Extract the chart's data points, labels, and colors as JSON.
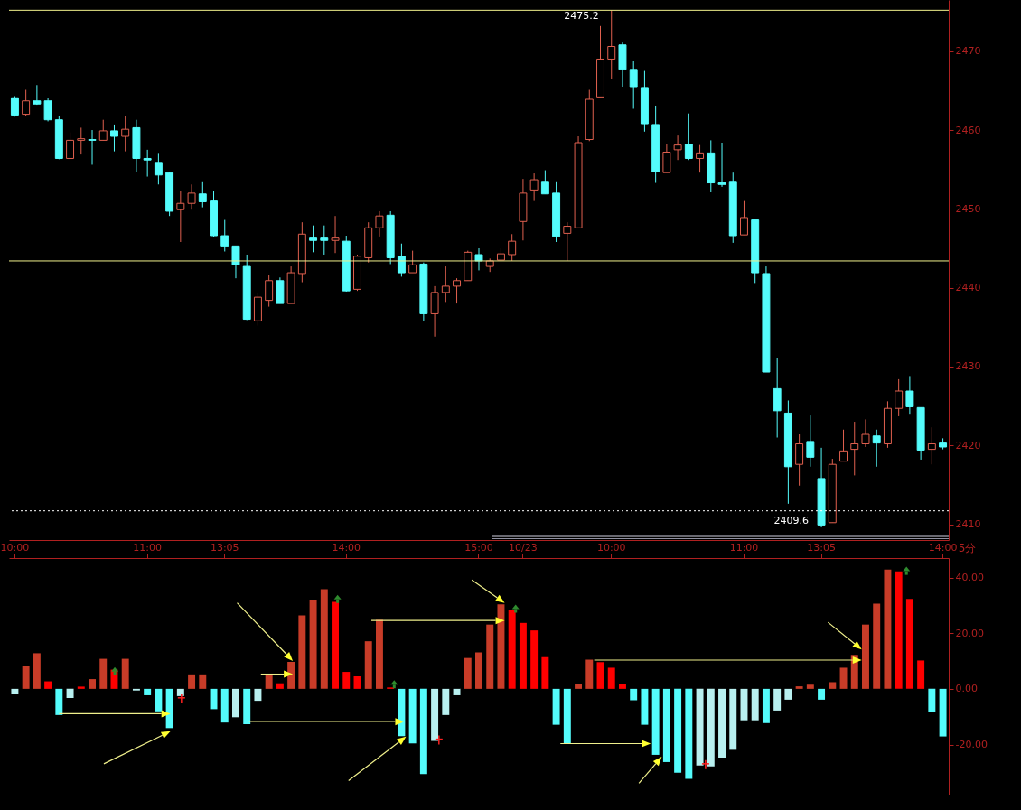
{
  "chart_data": [
    {
      "type": "candlestick",
      "tick_labels": "y",
      "grid": false,
      "categories": [
        null,
        null,
        null,
        null,
        null,
        null,
        null,
        null,
        null,
        null,
        null,
        null,
        null,
        null,
        null,
        null,
        null,
        null,
        null,
        null,
        null,
        null,
        null,
        null,
        null,
        null,
        null,
        null,
        null,
        null,
        null,
        null,
        null,
        null,
        null,
        null,
        null,
        null,
        null,
        null,
        null,
        null,
        null,
        null,
        null,
        null,
        null,
        null,
        null,
        null,
        null,
        null,
        null,
        null,
        null,
        null,
        null,
        null,
        null,
        null,
        null,
        null,
        null,
        null,
        null,
        null,
        null,
        null,
        null,
        null,
        null,
        null,
        null,
        null,
        null,
        null,
        null,
        null,
        null,
        null,
        null,
        null,
        null,
        null,
        null
      ],
      "ohlc": [
        [
          2464.1,
          2464.3,
          2461.7,
          2461.9
        ],
        [
          2462.0,
          2465.1,
          2461.8,
          2463.7
        ],
        [
          2463.7,
          2465.7,
          2463.2,
          2463.3
        ],
        [
          2463.7,
          2464.1,
          2461.1,
          2461.3
        ],
        [
          2461.3,
          2461.8,
          2456.3,
          2456.4
        ],
        [
          2456.4,
          2459.7,
          2456.3,
          2458.7
        ],
        [
          2458.7,
          2460.3,
          2456.9,
          2458.9
        ],
        [
          2458.8,
          2460.0,
          2455.6,
          2458.7
        ],
        [
          2458.7,
          2461.3,
          2458.7,
          2459.9
        ],
        [
          2459.9,
          2460.7,
          2457.3,
          2459.2
        ],
        [
          2459.2,
          2461.8,
          2457.3,
          2460.1
        ],
        [
          2460.3,
          2461.3,
          2454.7,
          2456.4
        ],
        [
          2456.4,
          2457.5,
          2454.1,
          2456.2
        ],
        [
          2455.9,
          2457.1,
          2453.1,
          2454.3
        ],
        [
          2454.6,
          2454.6,
          2449.1,
          2449.7
        ],
        [
          2449.9,
          2452.3,
          2445.8,
          2450.7
        ],
        [
          2450.7,
          2453.1,
          2449.9,
          2452.0
        ],
        [
          2451.9,
          2453.5,
          2450.2,
          2450.9
        ],
        [
          2451.0,
          2452.3,
          2446.4,
          2446.6
        ],
        [
          2446.6,
          2448.6,
          2444.6,
          2445.3
        ],
        [
          2445.3,
          2445.3,
          2441.2,
          2442.9
        ],
        [
          2442.7,
          2444.2,
          2435.9,
          2436.0
        ],
        [
          2435.8,
          2439.4,
          2435.2,
          2438.8
        ],
        [
          2438.4,
          2441.6,
          2437.6,
          2440.9
        ],
        [
          2440.9,
          2441.3,
          2438.0,
          2438.0
        ],
        [
          2438.0,
          2442.7,
          2438.0,
          2441.9
        ],
        [
          2441.8,
          2448.3,
          2440.7,
          2446.8
        ],
        [
          2446.3,
          2447.9,
          2444.5,
          2446.0
        ],
        [
          2446.3,
          2447.9,
          2444.2,
          2446.0
        ],
        [
          2446.0,
          2449.1,
          2444.4,
          2446.3
        ],
        [
          2445.9,
          2446.6,
          2439.5,
          2439.6
        ],
        [
          2439.8,
          2444.2,
          2439.6,
          2444.0
        ],
        [
          2443.8,
          2448.3,
          2443.2,
          2447.6
        ],
        [
          2447.6,
          2449.7,
          2446.5,
          2449.1
        ],
        [
          2449.2,
          2449.7,
          2443.0,
          2443.8
        ],
        [
          2444.0,
          2445.6,
          2441.4,
          2441.9
        ],
        [
          2441.9,
          2444.7,
          2441.9,
          2442.9
        ],
        [
          2443.0,
          2443.2,
          2435.8,
          2436.7
        ],
        [
          2436.7,
          2440.2,
          2433.8,
          2439.4
        ],
        [
          2439.4,
          2442.7,
          2438.2,
          2440.2
        ],
        [
          2440.2,
          2441.2,
          2438.0,
          2440.9
        ],
        [
          2440.9,
          2444.7,
          2440.9,
          2444.5
        ],
        [
          2444.2,
          2445.0,
          2442.2,
          2443.4
        ],
        [
          2442.7,
          2443.7,
          2442.0,
          2443.4
        ],
        [
          2443.5,
          2445.0,
          2443.5,
          2444.3
        ],
        [
          2444.2,
          2446.8,
          2443.4,
          2445.9
        ],
        [
          2448.4,
          2453.8,
          2446.0,
          2452.0
        ],
        [
          2452.4,
          2454.5,
          2451.0,
          2453.7
        ],
        [
          2453.5,
          2454.9,
          2451.9,
          2451.9
        ],
        [
          2452.0,
          2453.5,
          2445.8,
          2446.5
        ],
        [
          2446.9,
          2448.3,
          2443.4,
          2447.8
        ],
        [
          2447.6,
          2459.2,
          2447.6,
          2458.4
        ],
        [
          2458.8,
          2465.1,
          2458.6,
          2463.9
        ],
        [
          2464.2,
          2473.2,
          2464.2,
          2469.0
        ],
        [
          2469.0,
          2475.2,
          2466.5,
          2470.6
        ],
        [
          2470.8,
          2471.1,
          2465.5,
          2467.7
        ],
        [
          2467.7,
          2468.8,
          2462.7,
          2465.5
        ],
        [
          2465.4,
          2467.5,
          2459.8,
          2460.8
        ],
        [
          2460.7,
          2463.1,
          2453.3,
          2454.7
        ],
        [
          2454.6,
          2458.2,
          2454.6,
          2457.2
        ],
        [
          2457.5,
          2459.3,
          2456.2,
          2458.1
        ],
        [
          2458.2,
          2462.1,
          2456.2,
          2456.4
        ],
        [
          2456.4,
          2458.1,
          2454.6,
          2457.1
        ],
        [
          2457.1,
          2458.7,
          2452.1,
          2453.3
        ],
        [
          2453.3,
          2458.4,
          2452.8,
          2453.1
        ],
        [
          2453.5,
          2454.6,
          2445.7,
          2446.6
        ],
        [
          2446.7,
          2451.0,
          2446.7,
          2448.9
        ],
        [
          2448.6,
          2448.6,
          2440.6,
          2441.9
        ],
        [
          2441.8,
          2442.7,
          2429.3,
          2429.3
        ],
        [
          2427.2,
          2431.1,
          2421.0,
          2424.4
        ],
        [
          2424.1,
          2425.7,
          2412.6,
          2417.3
        ],
        [
          2417.6,
          2421.4,
          2414.9,
          2420.2
        ],
        [
          2420.5,
          2423.8,
          2417.3,
          2418.5
        ],
        [
          2415.8,
          2419.7,
          2409.6,
          2409.9
        ],
        [
          2410.2,
          2418.3,
          2410.2,
          2417.6
        ],
        [
          2418.0,
          2422.0,
          2418.0,
          2419.3
        ],
        [
          2419.5,
          2423.0,
          2416.2,
          2420.2
        ],
        [
          2420.2,
          2423.3,
          2419.8,
          2421.4
        ],
        [
          2421.2,
          2422.0,
          2417.3,
          2420.3
        ],
        [
          2420.2,
          2425.6,
          2419.7,
          2424.7
        ],
        [
          2424.7,
          2428.4,
          2423.7,
          2426.9
        ],
        [
          2426.9,
          2428.8,
          2423.9,
          2424.9
        ],
        [
          2424.8,
          2424.8,
          2418.2,
          2419.4
        ],
        [
          2419.5,
          2422.3,
          2417.6,
          2420.2
        ],
        [
          2420.3,
          2420.9,
          2419.5,
          2419.8
        ]
      ],
      "colors": [
        "#54fcfc",
        "#e0604f",
        "#54fcfc",
        "#54fcfc",
        "#54fcfc",
        "#e0604f",
        "#e0604f",
        "#54fcfc",
        "#e0604f",
        "#54fcfc",
        "#e0604f",
        "#54fcfc",
        "#54fcfc",
        "#54fcfc",
        "#54fcfc",
        "#e0604f",
        "#e0604f",
        "#54fcfc",
        "#54fcfc",
        "#54fcfc",
        "#54fcfc",
        "#54fcfc",
        "#e0604f",
        "#e0604f",
        "#54fcfc",
        "#e0604f",
        "#e0604f",
        "#54fcfc",
        "#54fcfc",
        "#e0604f",
        "#54fcfc",
        "#e0604f",
        "#e0604f",
        "#e0604f",
        "#54fcfc",
        "#54fcfc",
        "#e0604f",
        "#54fcfc",
        "#e0604f",
        "#e0604f",
        "#e0604f",
        "#e0604f",
        "#54fcfc",
        "#e0604f",
        "#e0604f",
        "#e0604f",
        "#e0604f",
        "#e0604f",
        "#54fcfc",
        "#54fcfc",
        "#e0604f",
        "#e0604f",
        "#e0604f",
        "#e0604f",
        "#e0604f",
        "#54fcfc",
        "#54fcfc",
        "#54fcfc",
        "#54fcfc",
        "#e0604f",
        "#e0604f",
        "#54fcfc",
        "#e0604f",
        "#54fcfc",
        "#54fcfc",
        "#54fcfc",
        "#e0604f",
        "#54fcfc",
        "#54fcfc",
        "#54fcfc",
        "#54fcfc",
        "#e0604f",
        "#54fcfc",
        "#54fcfc",
        "#e0604f",
        "#e0604f",
        "#e0604f",
        "#e0604f",
        "#54fcfc",
        "#e0604f",
        "#e0604f",
        "#54fcfc",
        "#54fcfc",
        "#e0604f",
        "#54fcfc"
      ],
      "ylim": [
        2408,
        2476.5
      ],
      "yticks": [
        2410,
        2420,
        2430,
        2440,
        2450,
        2460,
        2470
      ],
      "ref_lines": [
        {
          "axis": "y",
          "value": 2475.2,
          "color": "#f0f08c"
        },
        {
          "axis": "y",
          "value": 2443.4,
          "color": "#f0f08c"
        },
        {
          "axis": "y",
          "value": 2411.7,
          "color": "#ffffff",
          "line_style": "dotted"
        }
      ],
      "annotations": [
        {
          "text": "2475.2",
          "y": 2475.2
        },
        "2409.6"
      ]
    },
    {
      "type": "bar",
      "xlabel": "5分",
      "grid": false,
      "categories": [
        "10:00",
        null,
        null,
        null,
        null,
        null,
        null,
        null,
        null,
        null,
        null,
        null,
        "11:00",
        null,
        null,
        null,
        null,
        null,
        null,
        "13:05",
        null,
        null,
        null,
        null,
        null,
        null,
        null,
        null,
        null,
        null,
        "14:00",
        null,
        null,
        null,
        null,
        null,
        null,
        null,
        null,
        null,
        null,
        null,
        "15:00",
        null,
        null,
        null,
        "10/23",
        null,
        null,
        null,
        null,
        null,
        null,
        null,
        "10:00",
        null,
        null,
        null,
        null,
        null,
        null,
        null,
        null,
        null,
        null,
        null,
        "11:00",
        null,
        null,
        null,
        null,
        null,
        null,
        "13:05",
        null,
        null,
        null,
        null,
        null,
        null,
        null,
        null,
        null,
        null,
        "14:00"
      ],
      "values": [
        -1.7,
        8.4,
        12.8,
        2.7,
        -9.4,
        -3.3,
        0.8,
        3.5,
        10.8,
        6.9,
        10.8,
        -0.6,
        -2.3,
        -8.1,
        -14.1,
        -2.6,
        5.2,
        5.2,
        -7.3,
        -12.1,
        -10.2,
        -12.7,
        -4.3,
        5.2,
        2.0,
        9.7,
        26.4,
        32.1,
        35.8,
        31.3,
        6.1,
        4.5,
        17.1,
        24.8,
        0.5,
        -17.0,
        -19.6,
        -30.6,
        -18.7,
        -9.4,
        -2.3,
        11.1,
        13.1,
        23.1,
        30.4,
        28.3,
        23.7,
        21.0,
        11.4,
        -12.9,
        -19.7,
        1.6,
        10.5,
        9.6,
        7.6,
        1.8,
        -4.1,
        -12.9,
        -23.7,
        -26.3,
        -30.1,
        -32.3,
        -27.5,
        -27.9,
        -24.7,
        -21.9,
        -11.3,
        -11.3,
        -12.3,
        -7.8,
        -3.9,
        0.9,
        1.5,
        -3.9,
        2.4,
        7.6,
        12.2,
        23.1,
        30.6,
        42.9,
        42.2,
        32.3,
        10.2,
        -8.3,
        -17.1
      ],
      "colors": [
        "#b8f0f0",
        "#c83c28",
        "#c83c28",
        "#ff0000",
        "#54fcfc",
        "#b8f0f0",
        "#ff0000",
        "#c83c28",
        "#c83c28",
        "#ff0000",
        "#c83c28",
        "#b8f0f0",
        "#54fcfc",
        "#54fcfc",
        "#54fcfc",
        "#b8f0f0",
        "#c83c28",
        "#c83c28",
        "#54fcfc",
        "#54fcfc",
        "#b8f0f0",
        "#54fcfc",
        "#b8f0f0",
        "#c83c28",
        "#ff0000",
        "#c83c28",
        "#c83c28",
        "#c83c28",
        "#c83c28",
        "#ff0000",
        "#ff0000",
        "#ff0000",
        "#c83c28",
        "#c83c28",
        "#ff0000",
        "#54fcfc",
        "#54fcfc",
        "#54fcfc",
        "#b8f0f0",
        "#b8f0f0",
        "#b8f0f0",
        "#c83c28",
        "#c83c28",
        "#c83c28",
        "#c83c28",
        "#ff0000",
        "#ff0000",
        "#ff0000",
        "#ff0000",
        "#54fcfc",
        "#54fcfc",
        "#c83c28",
        "#c83c28",
        "#ff0000",
        "#ff0000",
        "#ff0000",
        "#54fcfc",
        "#54fcfc",
        "#54fcfc",
        "#54fcfc",
        "#54fcfc",
        "#54fcfc",
        "#b8f0f0",
        "#b8f0f0",
        "#b8f0f0",
        "#b8f0f0",
        "#b8f0f0",
        "#b8f0f0",
        "#54fcfc",
        "#b8f0f0",
        "#b8f0f0",
        "#c83c28",
        "#c83c28",
        "#54fcfc",
        "#c83c28",
        "#c83c28",
        "#c83c28",
        "#c83c28",
        "#c83c28",
        "#c83c28",
        "#ff0000",
        "#ff0000",
        "#ff0000",
        "#54fcfc",
        "#54fcfc"
      ],
      "ylim": [
        -38,
        47
      ],
      "yticks": [
        {
          "value": -20,
          "label": "-20.00"
        },
        {
          "value": 0,
          "label": "0.00"
        },
        {
          "value": 20,
          "label": "20.00"
        },
        {
          "value": 40,
          "label": "40.00"
        }
      ]
    }
  ]
}
